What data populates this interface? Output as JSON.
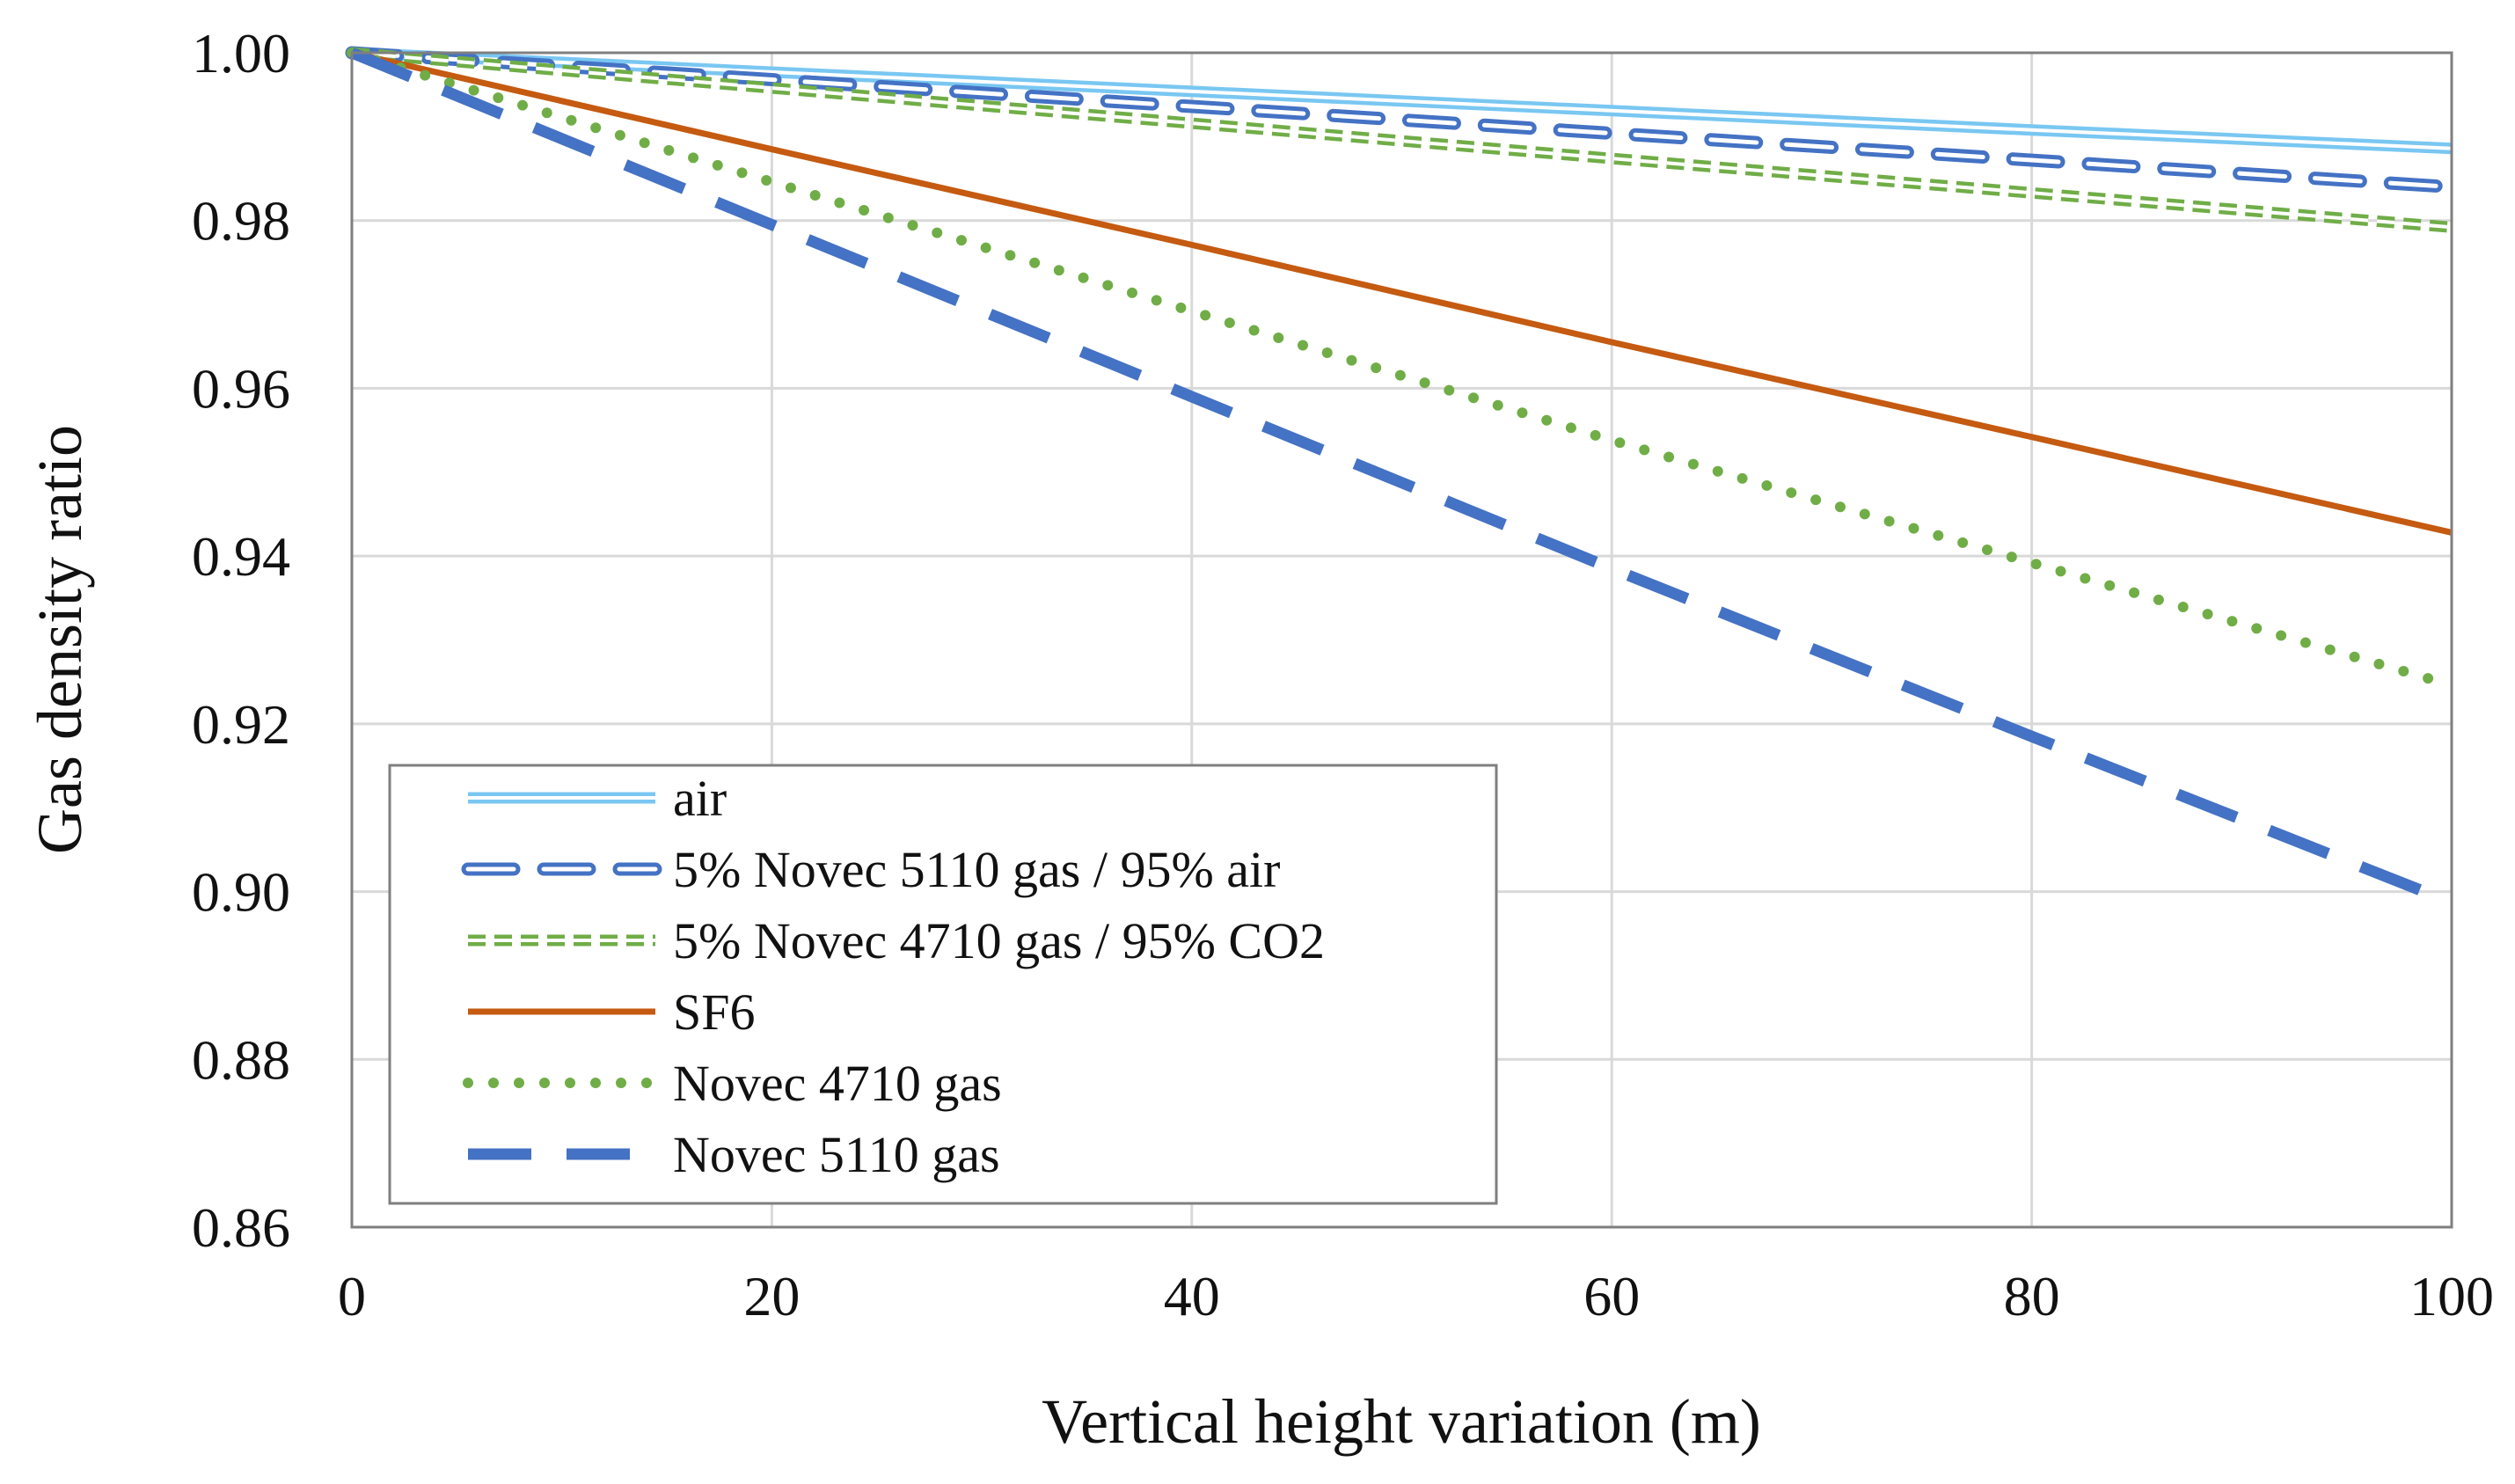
{
  "chart_data": {
    "type": "line",
    "title": "",
    "xlabel": "Vertical height variation (m)",
    "ylabel": "Gas density ratio",
    "xlim": [
      0,
      100
    ],
    "ylim": [
      0.86,
      1.0
    ],
    "x_ticks": [
      0,
      20,
      40,
      60,
      80,
      100
    ],
    "x_tick_labels": [
      "0",
      "20",
      "40",
      "60",
      "80",
      "100"
    ],
    "y_ticks": [
      0.86,
      0.88,
      0.9,
      0.92,
      0.94,
      0.96,
      0.98,
      1.0
    ],
    "y_tick_labels": [
      "0.86",
      "0.88",
      "0.90",
      "0.92",
      "0.94",
      "0.96",
      "0.98",
      "1.00"
    ],
    "grid": true,
    "legend_position": "bottom-left",
    "x": [
      0,
      20,
      40,
      60,
      80,
      100
    ],
    "series": [
      {
        "name": "air",
        "color": "#79C7F2",
        "style": "double-solid",
        "values": [
          1.0,
          0.9977,
          0.9954,
          0.9931,
          0.9908,
          0.9886
        ]
      },
      {
        "name": "5% Novec 5110 gas / 95% air",
        "color": "#4472C4",
        "style": "double-dash",
        "values": [
          1.0,
          0.9968,
          0.9936,
          0.9904,
          0.9872,
          0.984
        ]
      },
      {
        "name": "5% Novec 4710 gas / 95% CO2",
        "color": "#70AD47",
        "style": "double-short-dash",
        "values": [
          1.0,
          0.9958,
          0.9916,
          0.9874,
          0.9833,
          0.9792
        ]
      },
      {
        "name": "SF6",
        "color": "#C55A11",
        "style": "solid",
        "values": [
          1.0,
          0.9885,
          0.9771,
          0.9655,
          0.9542,
          0.9428
        ]
      },
      {
        "name": "Novec 4710 gas",
        "color": "#70AD47",
        "style": "dotted",
        "values": [
          1.0,
          0.9846,
          0.9692,
          0.9538,
          0.9392,
          0.9246
        ]
      },
      {
        "name": "Novec 5110 gas",
        "color": "#4472C4",
        "style": "long-dash",
        "values": [
          1.0,
          0.9795,
          0.959,
          0.9385,
          0.9185,
          0.8987
        ]
      }
    ]
  }
}
